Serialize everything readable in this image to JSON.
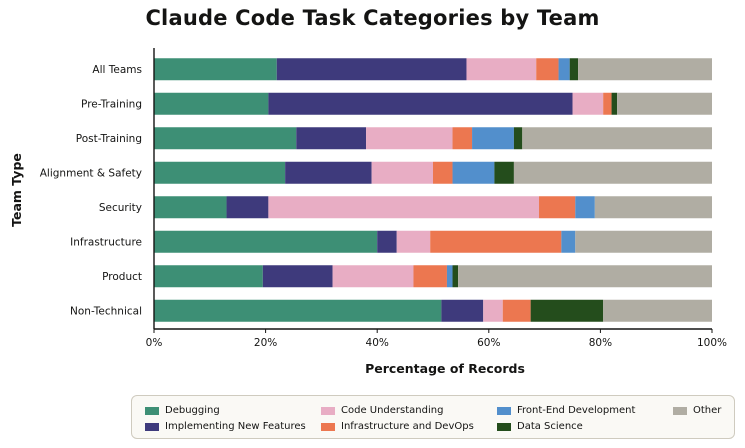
{
  "chart_data": {
    "type": "bar",
    "orientation": "horizontal",
    "stacked": true,
    "title": "Claude Code Task Categories by Team",
    "xlabel": "Percentage of Records",
    "ylabel": "Team Type",
    "xlim": [
      0,
      100
    ],
    "xticks": [
      "0%",
      "20%",
      "40%",
      "60%",
      "80%",
      "100%"
    ],
    "categories": [
      "All Teams",
      "Pre-Training",
      "Post-Training",
      "Alignment & Safety",
      "Security",
      "Infrastructure",
      "Product",
      "Non-Technical"
    ],
    "series": [
      {
        "name": "Debugging",
        "color": "#3d8f75",
        "values": [
          22,
          20.5,
          25.5,
          23.5,
          13,
          40,
          19.5,
          51.5
        ]
      },
      {
        "name": "Implementing New Features",
        "color": "#3e3a7c",
        "values": [
          34,
          54.5,
          12.5,
          15.5,
          7.5,
          3.5,
          12.5,
          7.5
        ]
      },
      {
        "name": "Code Understanding",
        "color": "#e8adc4",
        "values": [
          12.5,
          5.5,
          15.5,
          11,
          48.5,
          6,
          14.5,
          3.5
        ]
      },
      {
        "name": "Infrastructure and DevOps",
        "color": "#ec7750",
        "values": [
          4,
          1.5,
          3.5,
          3.5,
          6.5,
          23.5,
          6,
          5
        ]
      },
      {
        "name": "Front-End Development",
        "color": "#528fcc",
        "values": [
          2,
          0,
          7.5,
          7.5,
          3.5,
          2.5,
          1,
          0
        ]
      },
      {
        "name": "Data Science",
        "color": "#244d1c",
        "values": [
          1.5,
          1,
          1.5,
          3.5,
          0,
          0,
          1,
          13
        ]
      },
      {
        "name": "Other",
        "color": "#b0ada3",
        "values": [
          24,
          17,
          34,
          35.5,
          21,
          24.5,
          45.5,
          19.5
        ]
      }
    ],
    "legend_position": "bottom"
  }
}
